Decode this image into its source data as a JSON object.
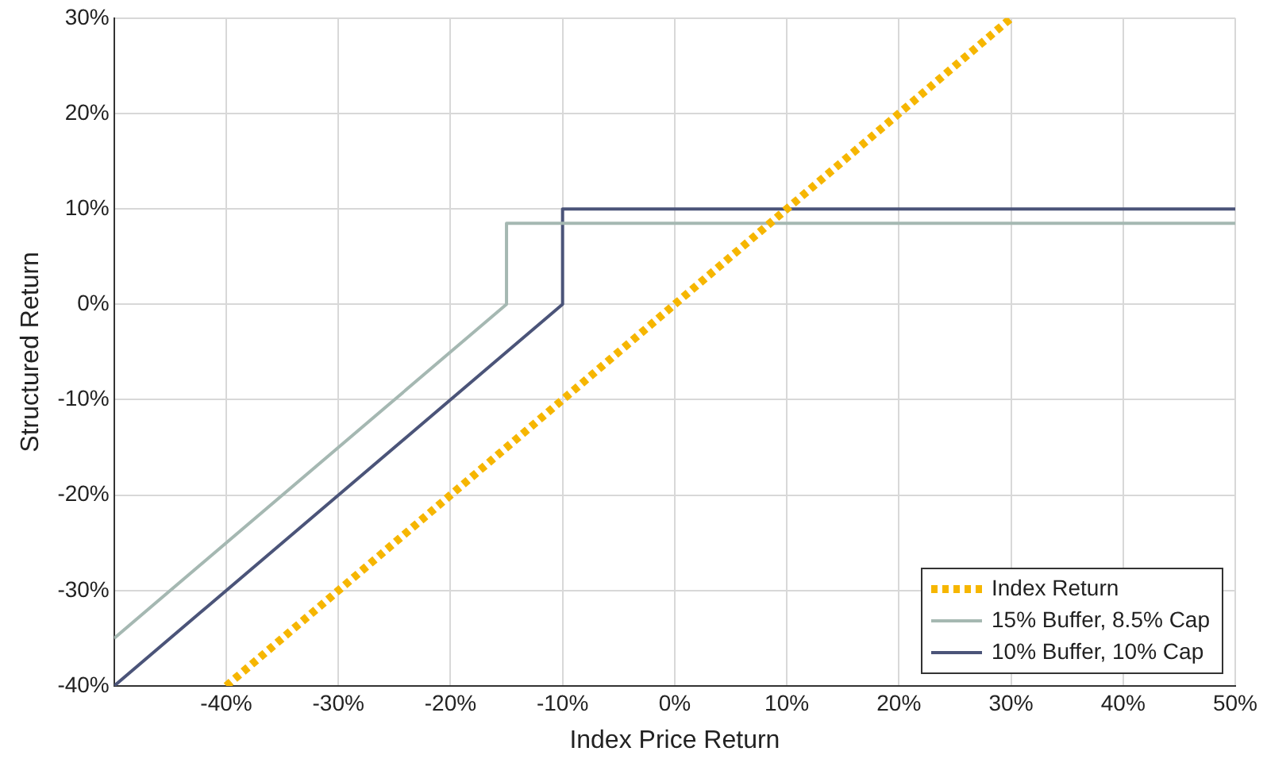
{
  "chart_data": {
    "type": "line",
    "xlabel": "Index Price Return",
    "ylabel": "Structured Return",
    "xlim": [
      -50,
      50
    ],
    "ylim": [
      -40,
      30
    ],
    "xticks": [
      {
        "value": -40,
        "label": "-40%"
      },
      {
        "value": -30,
        "label": "-30%"
      },
      {
        "value": -20,
        "label": "-20%"
      },
      {
        "value": -10,
        "label": "-10%"
      },
      {
        "value": 0,
        "label": "0%"
      },
      {
        "value": 10,
        "label": "10%"
      },
      {
        "value": 20,
        "label": "20%"
      },
      {
        "value": 30,
        "label": "30%"
      },
      {
        "value": 40,
        "label": "40%"
      },
      {
        "value": 50,
        "label": "50%"
      }
    ],
    "yticks": [
      {
        "value": -40,
        "label": "-40%"
      },
      {
        "value": -30,
        "label": "-30%"
      },
      {
        "value": -20,
        "label": "-20%"
      },
      {
        "value": -10,
        "label": "-10%"
      },
      {
        "value": 0,
        "label": "0%"
      },
      {
        "value": 10,
        "label": "10%"
      },
      {
        "value": 20,
        "label": "20%"
      },
      {
        "value": 30,
        "label": "30%"
      }
    ],
    "grid": true,
    "legend": "bottom right",
    "marker": "none",
    "series": [
      {
        "name": "Index Return",
        "color": "#f6b600",
        "line_style": "dotted",
        "x": [
          -40,
          30
        ],
        "values": [
          -40,
          30
        ]
      },
      {
        "name": "15% Buffer, 8.5% Cap",
        "color": "#a5b8b2",
        "line_style": "solid",
        "x": [
          -50,
          -15,
          -15,
          50
        ],
        "values": [
          -35,
          0,
          8.5,
          8.5
        ]
      },
      {
        "name": "10% Buffer, 10% Cap",
        "color": "#4b5479",
        "line_style": "solid",
        "x": [
          -50,
          -10,
          -10,
          50
        ],
        "values": [
          -40,
          0,
          10,
          10
        ]
      }
    ]
  }
}
